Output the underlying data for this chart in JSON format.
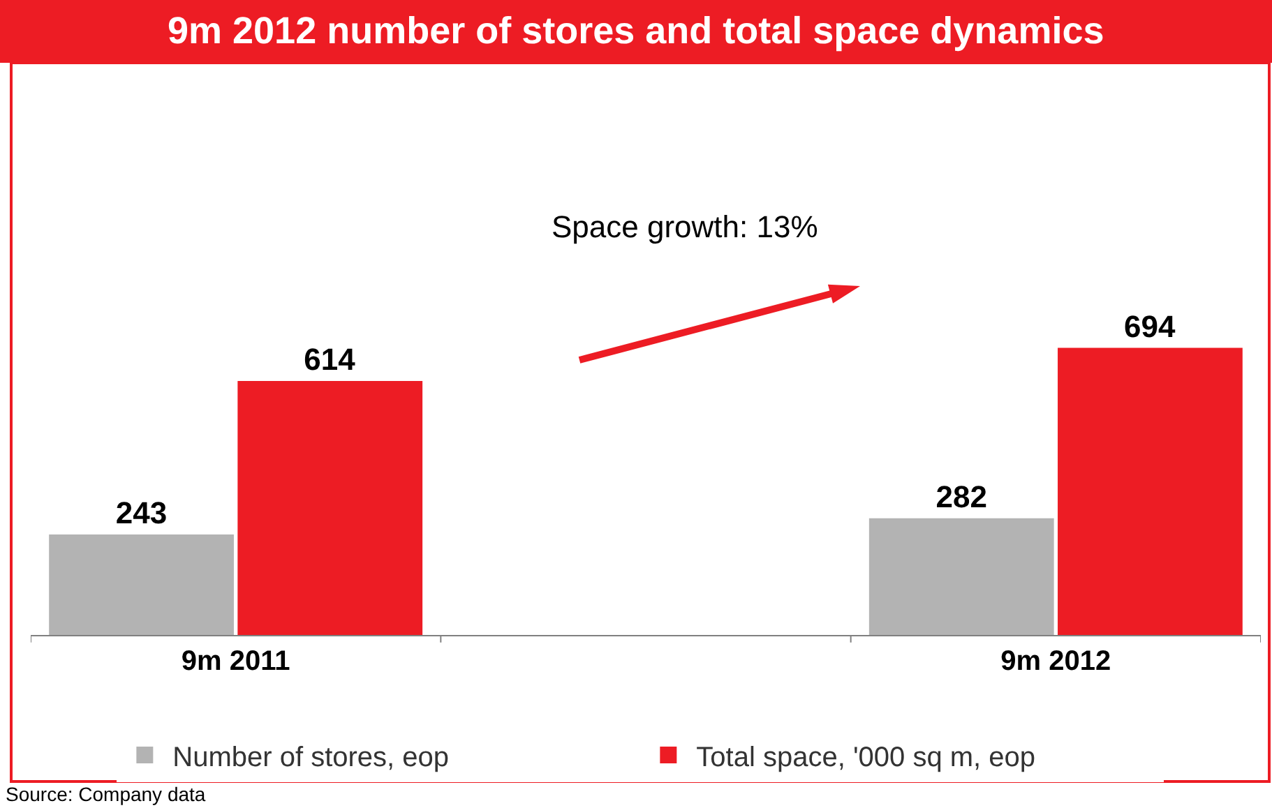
{
  "chart_data": {
    "type": "bar",
    "title": "9m 2012 number of stores and total space dynamics",
    "categories": [
      "9m 2011",
      null,
      "9m 2012"
    ],
    "series": [
      {
        "name": "Number of stores, eop",
        "color": "#b3b3b3",
        "values": [
          243,
          null,
          282
        ]
      },
      {
        "name": "Total space, '000 sq m, eop",
        "color": "#ed1c24",
        "values": [
          614,
          null,
          694
        ]
      }
    ],
    "data_labels": true,
    "legend": "bottom",
    "annotations": [
      "Space growth: 13%",
      "Source: Company data"
    ]
  }
}
